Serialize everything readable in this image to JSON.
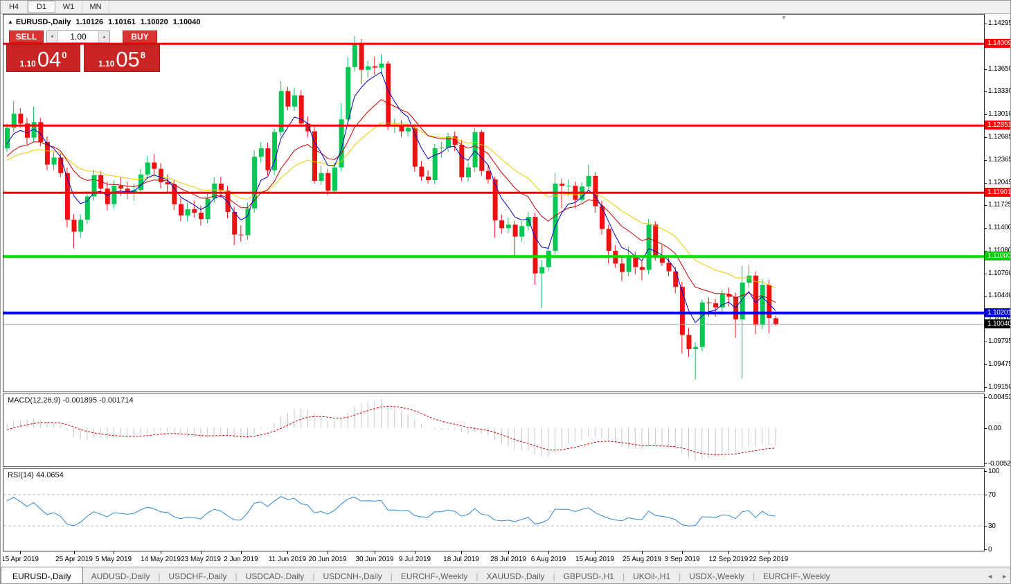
{
  "toolbar": {
    "timeframes": [
      {
        "label": "H4",
        "active": false
      },
      {
        "label": "D1",
        "active": true
      },
      {
        "label": "W1",
        "active": false
      },
      {
        "label": "MN",
        "active": false
      }
    ]
  },
  "header": {
    "symbol_label": "EURUSD-,Daily",
    "open": "1.10126",
    "high": "1.10161",
    "low": "1.10020",
    "close": "1.10040"
  },
  "trade_panel": {
    "sell_label": "SELL",
    "buy_label": "BUY",
    "volume": "1.00",
    "sell_price": {
      "small": "1.10",
      "big": "04",
      "sup": "0"
    },
    "buy_price": {
      "small": "1.10",
      "big": "05",
      "sup": "8"
    }
  },
  "icons": {
    "collapse": "▲",
    "spinner_down": "▾",
    "spinner_up": "▴",
    "shift_marker": "▼",
    "tab_scroll_left": "◄",
    "tab_scroll_right": "►"
  },
  "colors": {
    "bull": "#00C853",
    "bear": "#ee1111",
    "ma_fast": "#0000c8",
    "ma_mid": "#c80000",
    "ma_slow": "#e8cc00",
    "macd_hist": "#c4c4c4",
    "macd_signal": "#cc0000",
    "rsi_line": "#2e86d0",
    "level_dash": "#b8b8b8"
  },
  "chart_data": {
    "type": "candlestick",
    "symbol": "EURUSD-",
    "timeframe": "Daily",
    "price_axis": {
      "min": 1.0915,
      "max": 1.14295,
      "ticks": [
        1.14295,
        1.1365,
        1.1333,
        1.1301,
        1.12685,
        1.12365,
        1.12045,
        1.11725,
        1.114,
        1.1108,
        1.1076,
        1.1044,
        1.10115,
        1.09795,
        1.09475,
        1.0915
      ]
    },
    "hlines": [
      {
        "price": 1.14009,
        "color": "#ff0000",
        "lw": 3,
        "label": "1.14009",
        "bg": "#ff0000"
      },
      {
        "price": 1.12851,
        "color": "#ff0000",
        "lw": 3,
        "label": "1.12851",
        "bg": "#ff0000"
      },
      {
        "price": 1.11901,
        "color": "#ff0000",
        "lw": 3,
        "label": "1.11901",
        "bg": "#ff0000"
      },
      {
        "price": 1.11,
        "color": "#00dd00",
        "lw": 4,
        "label": "1.11000",
        "bg": "#00cc00"
      },
      {
        "price": 1.10201,
        "color": "#0000ee",
        "lw": 4,
        "label": "1.10201",
        "bg": "#0000dd"
      },
      {
        "price": 1.1004,
        "color": "#b0b0b0",
        "lw": 1,
        "label": "1.10040",
        "bg": "#000000"
      }
    ],
    "x_ticks": [
      {
        "label": "15 Apr 2019",
        "i": 2
      },
      {
        "label": "25 Apr 2019",
        "i": 10
      },
      {
        "label": "5 May 2019",
        "i": 16
      },
      {
        "label": "14 May 2019",
        "i": 23
      },
      {
        "label": "23 May 2019",
        "i": 29
      },
      {
        "label": "2 Jun 2019",
        "i": 35
      },
      {
        "label": "11 Jun 2019",
        "i": 42
      },
      {
        "label": "20 Jun 2019",
        "i": 48
      },
      {
        "label": "30 Jun 2019",
        "i": 55
      },
      {
        "label": "9 Jul 2019",
        "i": 61
      },
      {
        "label": "18 Jul 2019",
        "i": 68
      },
      {
        "label": "28 Jul 2019",
        "i": 75
      },
      {
        "label": "6 Aug 2019",
        "i": 81
      },
      {
        "label": "15 Aug 2019",
        "i": 88
      },
      {
        "label": "25 Aug 2019",
        "i": 95
      },
      {
        "label": "3 Sep 2019",
        "i": 101
      },
      {
        "label": "12 Sep 2019",
        "i": 108
      },
      {
        "label": "22 Sep 2019",
        "i": 114
      }
    ],
    "ma_lines": [
      {
        "period": 5,
        "color": "#0000c8"
      },
      {
        "period": 13,
        "color": "#c80000"
      },
      {
        "period": 24,
        "color": "#e8cc00"
      }
    ],
    "prehistory_closes": [
      1.133,
      1.131,
      1.1295,
      1.128,
      1.13,
      1.1315,
      1.1295,
      1.127,
      1.125,
      1.1232,
      1.1218,
      1.1205,
      1.119,
      1.118,
      1.1186,
      1.1196,
      1.121,
      1.1222,
      1.123,
      1.1222,
      1.1212,
      1.12,
      1.1192,
      1.1185,
      1.1178,
      1.1186,
      1.1198,
      1.1212,
      1.1224,
      1.1235,
      1.1228,
      1.1218,
      1.1208,
      1.1215,
      1.1228,
      1.1242,
      1.1256,
      1.125,
      1.1244,
      1.126
    ],
    "candles": [
      [
        1.1253,
        1.1288,
        1.1248,
        1.1282
      ],
      [
        1.1282,
        1.132,
        1.1276,
        1.1302
      ],
      [
        1.1302,
        1.131,
        1.1282,
        1.1288
      ],
      [
        1.1288,
        1.1296,
        1.1258,
        1.1268
      ],
      [
        1.1268,
        1.1312,
        1.1262,
        1.129
      ],
      [
        1.129,
        1.1296,
        1.1256,
        1.1262
      ],
      [
        1.1262,
        1.127,
        1.1222,
        1.123
      ],
      [
        1.123,
        1.1248,
        1.1222,
        1.124
      ],
      [
        1.124,
        1.1246,
        1.1212,
        1.1218
      ],
      [
        1.1218,
        1.1226,
        1.1141,
        1.1152
      ],
      [
        1.1152,
        1.116,
        1.1112,
        1.1135
      ],
      [
        1.1135,
        1.116,
        1.1126,
        1.1152
      ],
      [
        1.1152,
        1.1192,
        1.1146,
        1.1185
      ],
      [
        1.1185,
        1.1223,
        1.1179,
        1.1215
      ],
      [
        1.1215,
        1.1221,
        1.1188,
        1.1196
      ],
      [
        1.1196,
        1.1206,
        1.1165,
        1.1174
      ],
      [
        1.1174,
        1.1208,
        1.1168,
        1.12
      ],
      [
        1.12,
        1.1212,
        1.1186,
        1.1196
      ],
      [
        1.1196,
        1.1206,
        1.1181,
        1.119
      ],
      [
        1.119,
        1.1203,
        1.1179,
        1.1194
      ],
      [
        1.1194,
        1.1224,
        1.1188,
        1.1216
      ],
      [
        1.1216,
        1.1242,
        1.121,
        1.1233
      ],
      [
        1.1233,
        1.1245,
        1.1214,
        1.1224
      ],
      [
        1.1224,
        1.1232,
        1.1196,
        1.1205
      ],
      [
        1.1205,
        1.1216,
        1.1191,
        1.1202
      ],
      [
        1.1202,
        1.1208,
        1.1166,
        1.1174
      ],
      [
        1.1174,
        1.1183,
        1.115,
        1.1158
      ],
      [
        1.1158,
        1.1176,
        1.115,
        1.1167
      ],
      [
        1.1167,
        1.1179,
        1.1155,
        1.1162
      ],
      [
        1.1162,
        1.1172,
        1.1144,
        1.1153
      ],
      [
        1.1153,
        1.119,
        1.1147,
        1.1182
      ],
      [
        1.1182,
        1.1212,
        1.1176,
        1.1203
      ],
      [
        1.1203,
        1.1213,
        1.1183,
        1.1193
      ],
      [
        1.1193,
        1.12,
        1.1154,
        1.1163
      ],
      [
        1.1163,
        1.117,
        1.1116,
        1.1131
      ],
      [
        1.1131,
        1.1144,
        1.1121,
        1.113
      ],
      [
        1.113,
        1.1176,
        1.1124,
        1.1168
      ],
      [
        1.1168,
        1.125,
        1.1162,
        1.1241
      ],
      [
        1.1241,
        1.1262,
        1.1233,
        1.1253
      ],
      [
        1.1253,
        1.1261,
        1.1215,
        1.1222
      ],
      [
        1.1222,
        1.1281,
        1.1215,
        1.1276
      ],
      [
        1.1276,
        1.1348,
        1.127,
        1.1334
      ],
      [
        1.1334,
        1.134,
        1.1307,
        1.1312
      ],
      [
        1.1312,
        1.1339,
        1.1306,
        1.1328
      ],
      [
        1.1328,
        1.1335,
        1.1284,
        1.1288
      ],
      [
        1.1288,
        1.1298,
        1.1269,
        1.1277
      ],
      [
        1.1277,
        1.1283,
        1.1203,
        1.1207
      ],
      [
        1.1207,
        1.1228,
        1.1201,
        1.1218
      ],
      [
        1.1218,
        1.1224,
        1.1187,
        1.1193
      ],
      [
        1.1193,
        1.1232,
        1.1188,
        1.1226
      ],
      [
        1.1226,
        1.1317,
        1.1221,
        1.1294
      ],
      [
        1.1294,
        1.1382,
        1.1288,
        1.1368
      ],
      [
        1.1368,
        1.1412,
        1.1362,
        1.14
      ],
      [
        1.14,
        1.1408,
        1.1344,
        1.1364
      ],
      [
        1.1364,
        1.1377,
        1.1353,
        1.1369
      ],
      [
        1.1369,
        1.1383,
        1.1357,
        1.1367
      ],
      [
        1.1367,
        1.1386,
        1.1358,
        1.1373
      ],
      [
        1.1373,
        1.1377,
        1.1279,
        1.1285
      ],
      [
        1.1285,
        1.1295,
        1.1275,
        1.1286
      ],
      [
        1.1286,
        1.1293,
        1.1269,
        1.1277
      ],
      [
        1.1277,
        1.1288,
        1.127,
        1.1282
      ],
      [
        1.1282,
        1.1287,
        1.122,
        1.1227
      ],
      [
        1.1227,
        1.1235,
        1.1207,
        1.1213
      ],
      [
        1.1213,
        1.1222,
        1.1203,
        1.1208
      ],
      [
        1.1208,
        1.1259,
        1.1202,
        1.1253
      ],
      [
        1.1253,
        1.1262,
        1.124,
        1.1254
      ],
      [
        1.1254,
        1.1275,
        1.1248,
        1.127
      ],
      [
        1.127,
        1.1277,
        1.1249,
        1.1258
      ],
      [
        1.1258,
        1.1265,
        1.1207,
        1.1212
      ],
      [
        1.1212,
        1.1233,
        1.1206,
        1.1226
      ],
      [
        1.1226,
        1.1282,
        1.122,
        1.1276
      ],
      [
        1.1276,
        1.1279,
        1.1214,
        1.1221
      ],
      [
        1.1221,
        1.1229,
        1.1203,
        1.1209
      ],
      [
        1.1209,
        1.1213,
        1.1127,
        1.1151
      ],
      [
        1.1151,
        1.1159,
        1.1132,
        1.114
      ],
      [
        1.114,
        1.1155,
        1.1133,
        1.1145
      ],
      [
        1.1145,
        1.115,
        1.1101,
        1.1128
      ],
      [
        1.1128,
        1.115,
        1.1121,
        1.1143
      ],
      [
        1.1143,
        1.1163,
        1.1137,
        1.1156
      ],
      [
        1.1156,
        1.1162,
        1.106,
        1.1076
      ],
      [
        1.1076,
        1.1095,
        1.1027,
        1.1085
      ],
      [
        1.1085,
        1.1114,
        1.1079,
        1.1108
      ],
      [
        1.1108,
        1.1218,
        1.1102,
        1.1203
      ],
      [
        1.1203,
        1.121,
        1.1168,
        1.12
      ],
      [
        1.12,
        1.1209,
        1.1185,
        1.12
      ],
      [
        1.12,
        1.1206,
        1.1168,
        1.118
      ],
      [
        1.118,
        1.1205,
        1.1174,
        1.1199
      ],
      [
        1.1199,
        1.123,
        1.1193,
        1.1214
      ],
      [
        1.1214,
        1.1219,
        1.1162,
        1.1171
      ],
      [
        1.1171,
        1.1179,
        1.1131,
        1.1139
      ],
      [
        1.1139,
        1.1145,
        1.109,
        1.1108
      ],
      [
        1.1108,
        1.1116,
        1.1084,
        1.109
      ],
      [
        1.109,
        1.11,
        1.1065,
        1.1078
      ],
      [
        1.1078,
        1.1114,
        1.1072,
        1.11
      ],
      [
        1.11,
        1.1107,
        1.1075,
        1.1085
      ],
      [
        1.1085,
        1.1094,
        1.1066,
        1.1081
      ],
      [
        1.1081,
        1.1153,
        1.1075,
        1.1145
      ],
      [
        1.1145,
        1.115,
        1.1094,
        1.1101
      ],
      [
        1.1101,
        1.1116,
        1.1087,
        1.1091
      ],
      [
        1.1091,
        1.11,
        1.1072,
        1.1079
      ],
      [
        1.1079,
        1.1085,
        1.1048,
        1.1057
      ],
      [
        1.1057,
        1.1064,
        1.0963,
        1.0989
      ],
      [
        1.0989,
        1.0999,
        1.0958,
        1.0969
      ],
      [
        1.0969,
        1.0979,
        1.0926,
        1.0972
      ],
      [
        1.0972,
        1.1039,
        1.0966,
        1.1035
      ],
      [
        1.1035,
        1.1042,
        1.1015,
        1.1034
      ],
      [
        1.1034,
        1.104,
        1.1015,
        1.1028
      ],
      [
        1.1028,
        1.1053,
        1.1021,
        1.1047
      ],
      [
        1.1047,
        1.1056,
        1.1029,
        1.1043
      ],
      [
        1.1043,
        1.1049,
        1.0985,
        1.1011
      ],
      [
        1.1011,
        1.1087,
        1.0927,
        1.1063
      ],
      [
        1.1063,
        1.1088,
        1.1056,
        1.1073
      ],
      [
        1.1073,
        1.1079,
        1.099,
        1.1003
      ],
      [
        1.1003,
        1.1068,
        1.0997,
        1.106
      ],
      [
        1.106,
        1.1067,
        1.0991,
        1.1013
      ],
      [
        1.10126,
        1.10161,
        1.1002,
        1.1004
      ]
    ],
    "macd": {
      "label": "MACD(12,26,9)",
      "values_text": "-0.001895 -0.001714",
      "fast": 12,
      "slow": 26,
      "signal": 9,
      "axis_max": 0.004536,
      "axis_min": -0.005205,
      "axis_labels": [
        "0.004536",
        "0.00",
        "-0.005205"
      ]
    },
    "rsi": {
      "label": "RSI(14)",
      "value_text": "44.0654",
      "period": 14,
      "levels": [
        70,
        30
      ],
      "axis_labels": [
        "100",
        "70",
        "30",
        "0"
      ]
    }
  },
  "tabs": {
    "items": [
      {
        "label": "EURUSD-,Daily",
        "active": true
      },
      {
        "label": "AUDUSD-,Daily",
        "active": false
      },
      {
        "label": "USDCHF-,Daily",
        "active": false
      },
      {
        "label": "USDCAD-,Daily",
        "active": false
      },
      {
        "label": "USDCNH-,Daily",
        "active": false
      },
      {
        "label": "EURCHF-,Weekly",
        "active": false
      },
      {
        "label": "XAUUSD-,Daily",
        "active": false
      },
      {
        "label": "GBPUSD-,H1",
        "active": false
      },
      {
        "label": "UKOil-,H1",
        "active": false
      },
      {
        "label": "USDX-,Weekly",
        "active": false
      },
      {
        "label": "EURCHF-,Weekly",
        "active": false
      }
    ]
  }
}
